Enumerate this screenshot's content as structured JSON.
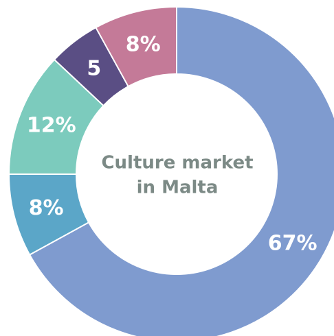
{
  "chart_data": {
    "type": "donut",
    "title": [
      "Culture market",
      "in Malta"
    ],
    "values": [
      67,
      8,
      12,
      5,
      8
    ],
    "value_labels": [
      "67%",
      "8%",
      "12%",
      "5",
      "8%"
    ],
    "colors": [
      "#7f9bcf",
      "#5ba6c8",
      "#7ccbbd",
      "#5a4e84",
      "#c47a98"
    ]
  }
}
